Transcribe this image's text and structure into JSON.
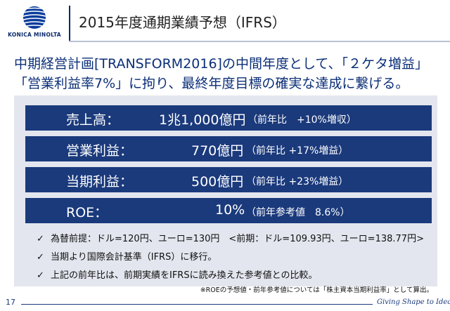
{
  "logo": {
    "text": "KONICA MINOLTA",
    "colors": {
      "primary": "#0a3c9c"
    }
  },
  "title": "2015年度通期業績予想（IFRS）",
  "lead": [
    "中期経営計画[TRANSFORM2016]の中間年度として、「２ケタ増益」",
    "「営業利益率7%」に拘り、最終年度目標の確実な達成に繋げる。"
  ],
  "metrics": [
    {
      "label": "売上高：",
      "value": "1兆1,000億円",
      "note": "（前年比　+10%増収）"
    },
    {
      "label": "営業利益：",
      "value": "770億円",
      "note": "（前年比 +17%増益）"
    },
    {
      "label": "当期利益：",
      "value": "500億円",
      "note": "（前年比 +23%増益）"
    },
    {
      "label": "ROE：",
      "value": "10%",
      "note": "（前年参考値　8.6%）"
    }
  ],
  "check_icon": "checkmark-icon",
  "bullets": [
    "為替前提：ドル=120円、ユーロ=130円　<前期：ドル=109.93円、ユーロ=138.77円>",
    "当期より国際会計基準（IFRS）に移行。",
    "上記の前年比は、前期実績をIFRSに読み換えた参考値との比較。"
  ],
  "footnote": "※ROEの予想値・前年参考値については「株主資本当期利益率」として算出。",
  "page_number": "17",
  "tagline": "Giving Shape to Ideas",
  "colors": {
    "bar": "#1b3a7c",
    "lead": "#0b2f78",
    "panel": "#e3e6ee"
  }
}
